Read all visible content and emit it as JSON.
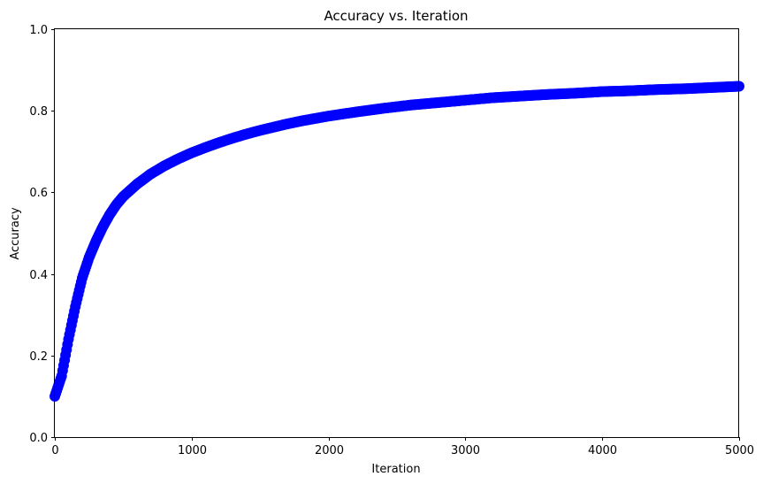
{
  "chart_data": {
    "type": "scatter",
    "title": "Accuracy vs. Iteration",
    "xlabel": "Iteration",
    "ylabel": "Accuracy",
    "xlim": [
      0,
      5000
    ],
    "ylim": [
      0,
      1.0
    ],
    "xticks": [
      0,
      1000,
      2000,
      3000,
      4000,
      5000
    ],
    "yticks": [
      0.0,
      0.2,
      0.4,
      0.6,
      0.8,
      1.0
    ],
    "xtick_labels": [
      "0",
      "1000",
      "2000",
      "3000",
      "4000",
      "5000"
    ],
    "ytick_labels": [
      "0.0",
      "0.2",
      "0.4",
      "0.6",
      "0.8",
      "1.0"
    ],
    "grid": false,
    "marker": "o",
    "color": "#0000ff",
    "series": [
      {
        "name": "Accuracy",
        "x": [
          0,
          50,
          100,
          150,
          200,
          250,
          300,
          350,
          400,
          450,
          500,
          600,
          700,
          800,
          900,
          1000,
          1100,
          1200,
          1300,
          1400,
          1500,
          1600,
          1700,
          1800,
          1900,
          2000,
          2200,
          2400,
          2600,
          2800,
          3000,
          3200,
          3400,
          3600,
          3800,
          4000,
          4200,
          4400,
          4600,
          4800,
          5000
        ],
        "y": [
          0.1,
          0.15,
          0.24,
          0.32,
          0.39,
          0.44,
          0.48,
          0.515,
          0.545,
          0.57,
          0.59,
          0.62,
          0.645,
          0.665,
          0.682,
          0.697,
          0.71,
          0.722,
          0.733,
          0.743,
          0.752,
          0.76,
          0.768,
          0.775,
          0.781,
          0.787,
          0.797,
          0.806,
          0.814,
          0.82,
          0.826,
          0.832,
          0.836,
          0.84,
          0.843,
          0.847,
          0.849,
          0.852,
          0.854,
          0.857,
          0.86
        ]
      }
    ]
  }
}
